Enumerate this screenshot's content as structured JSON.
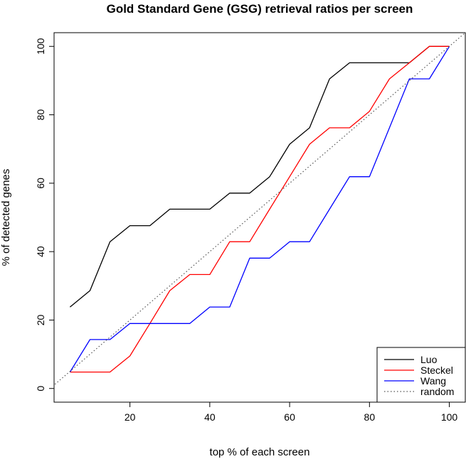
{
  "chart_data": {
    "type": "line",
    "title": "Gold Standard Gene (GSG) retrieval ratios per screen",
    "xlabel": "top % of each screen",
    "ylabel": "% of detected genes",
    "xlim": [
      1,
      104
    ],
    "ylim": [
      -4,
      104
    ],
    "x_ticks": [
      20,
      40,
      60,
      80,
      100
    ],
    "y_ticks": [
      0,
      20,
      40,
      60,
      80,
      100
    ],
    "x": [
      5,
      10,
      15,
      20,
      25,
      30,
      35,
      40,
      45,
      50,
      55,
      60,
      65,
      70,
      75,
      80,
      85,
      90,
      95,
      100
    ],
    "series": [
      {
        "name": "Luo",
        "color": "#000000",
        "dash": "solid",
        "values": [
          23.8,
          28.6,
          42.9,
          47.6,
          47.6,
          52.4,
          52.4,
          52.4,
          57.1,
          57.1,
          61.9,
          71.4,
          76.2,
          90.5,
          95.2,
          95.2,
          95.2,
          95.2,
          100,
          100
        ]
      },
      {
        "name": "Steckel",
        "color": "#ff0000",
        "dash": "solid",
        "values": [
          4.8,
          4.8,
          4.8,
          9.5,
          19.0,
          28.6,
          33.3,
          33.3,
          42.9,
          42.9,
          52.4,
          61.9,
          71.4,
          76.2,
          76.2,
          81.0,
          90.5,
          95.2,
          100,
          100
        ]
      },
      {
        "name": "Wang",
        "color": "#0000ff",
        "dash": "solid",
        "values": [
          4.8,
          14.3,
          14.3,
          19.0,
          19.0,
          19.0,
          19.0,
          23.8,
          23.8,
          38.1,
          38.1,
          42.9,
          42.9,
          52.4,
          61.9,
          61.9,
          76.2,
          90.5,
          90.5,
          100
        ]
      },
      {
        "name": "random",
        "color": "#555555",
        "dash": "dotted",
        "x": [
          0,
          104
        ],
        "values": [
          0,
          104
        ]
      }
    ],
    "legend": {
      "placement": "bottom-right",
      "entries": [
        "Luo",
        "Steckel",
        "Wang",
        "random"
      ]
    },
    "grid": false
  }
}
